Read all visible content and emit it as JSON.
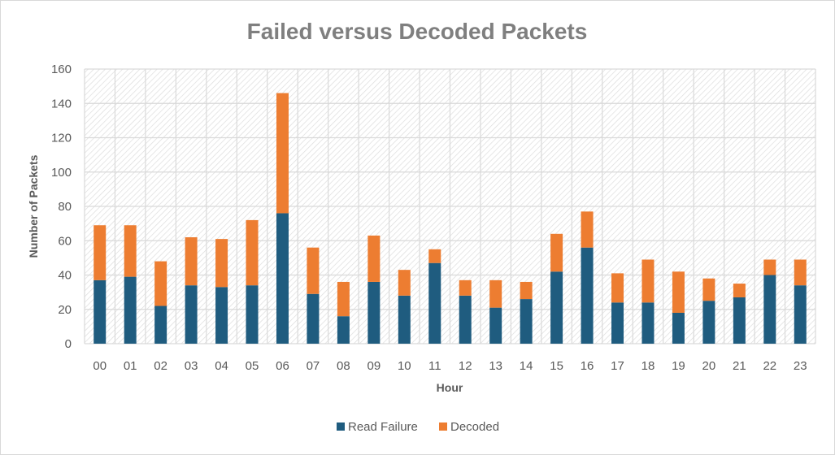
{
  "chart_data": {
    "type": "bar",
    "stacked": true,
    "title": "Failed versus Decoded Packets",
    "xlabel": "Hour",
    "ylabel": "Number of Packets",
    "ylim": [
      0,
      160
    ],
    "yticks": [
      0,
      20,
      40,
      60,
      80,
      100,
      120,
      140,
      160
    ],
    "grid": true,
    "legend_position": "bottom",
    "categories": [
      "00",
      "01",
      "02",
      "03",
      "04",
      "05",
      "06",
      "07",
      "08",
      "09",
      "10",
      "11",
      "12",
      "13",
      "14",
      "15",
      "16",
      "17",
      "18",
      "19",
      "20",
      "21",
      "22",
      "23"
    ],
    "series": [
      {
        "name": "Read Failure",
        "color": "#1f5c7f",
        "values": [
          37,
          39,
          22,
          34,
          33,
          34,
          76,
          29,
          16,
          36,
          28,
          47,
          28,
          21,
          26,
          42,
          56,
          24,
          24,
          18,
          25,
          27,
          40,
          34
        ]
      },
      {
        "name": "Decoded",
        "color": "#ed7d31",
        "values": [
          32,
          30,
          26,
          28,
          28,
          38,
          70,
          27,
          20,
          27,
          15,
          8,
          9,
          16,
          10,
          22,
          21,
          17,
          25,
          24,
          13,
          8,
          9,
          15
        ]
      }
    ]
  }
}
